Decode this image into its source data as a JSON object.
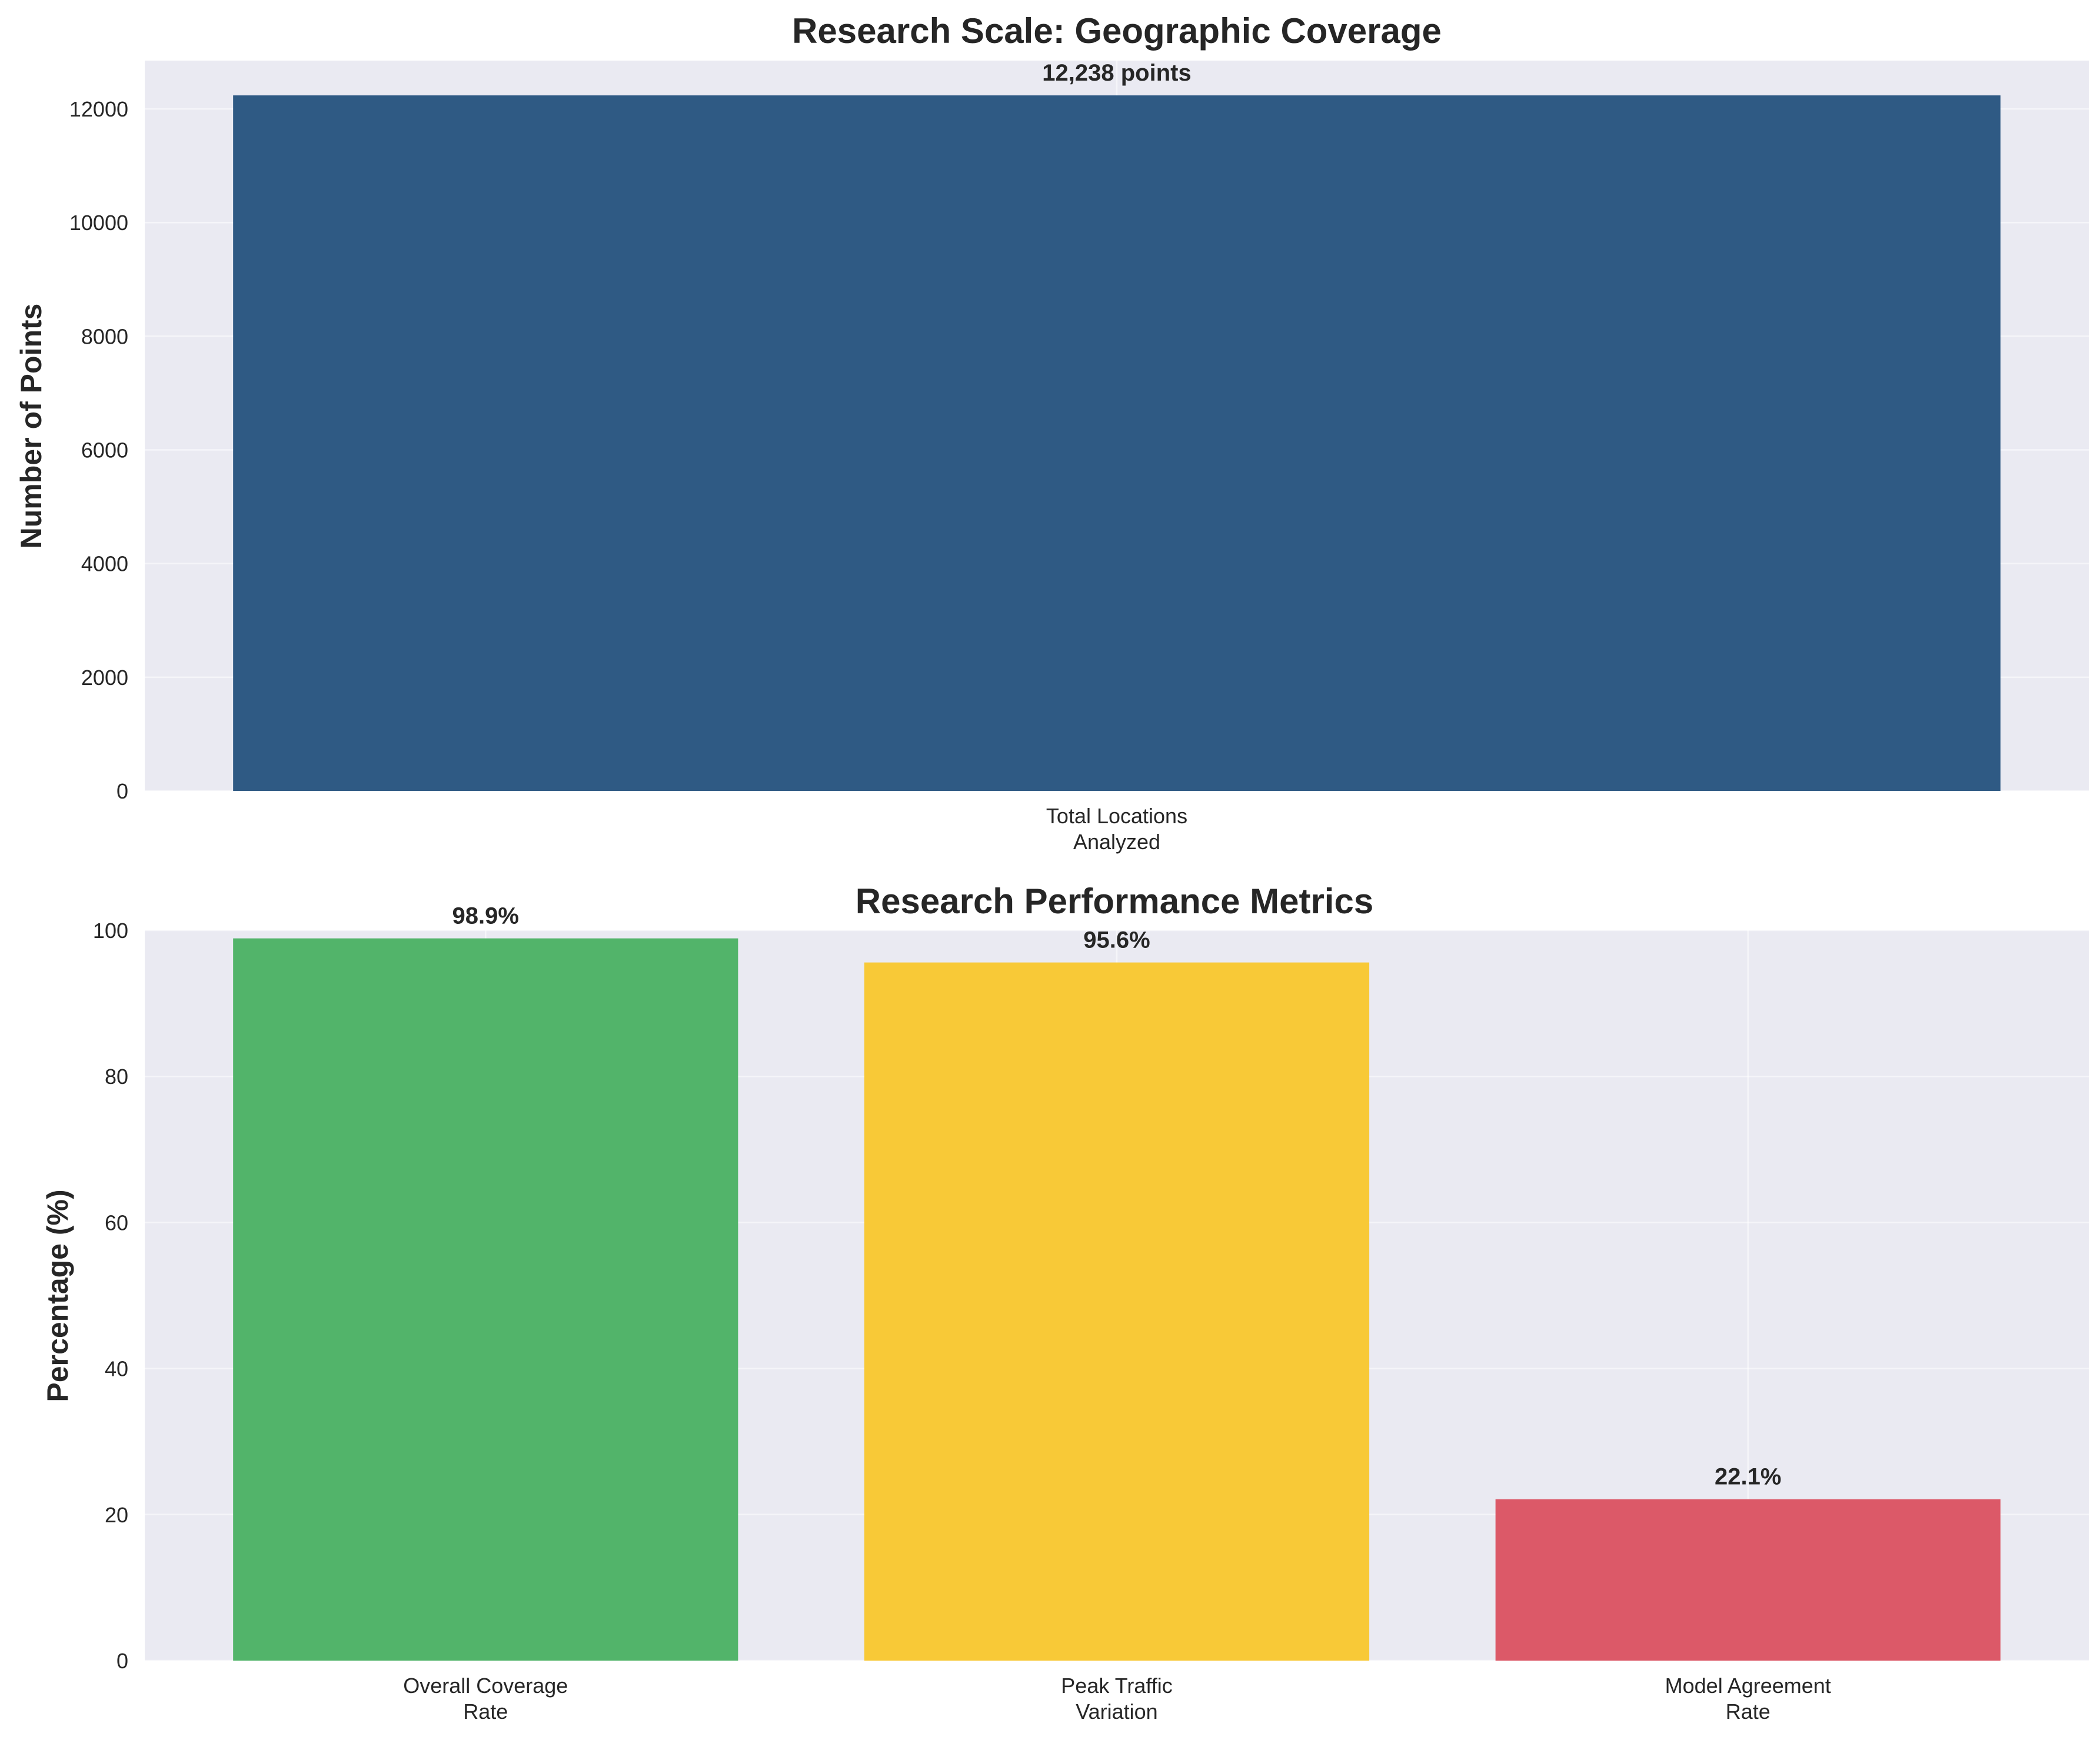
{
  "chart_data": [
    {
      "type": "bar",
      "title": "Research Scale: Geographic Coverage",
      "xlabel": "",
      "ylabel": "Number of Points",
      "categories": [
        [
          "Total Locations",
          "Analyzed"
        ]
      ],
      "values": [
        12238
      ],
      "value_labels": [
        "12,238 points"
      ],
      "colors": [
        "#2f5a84"
      ],
      "ylim": [
        0,
        12850
      ],
      "yticks": [
        0,
        2000,
        4000,
        6000,
        8000,
        10000,
        12000
      ],
      "grid": true,
      "legend": "none"
    },
    {
      "type": "bar",
      "title": "Research Performance Metrics",
      "xlabel": "",
      "ylabel": "Percentage (%)",
      "categories": [
        [
          "Overall Coverage",
          "Rate"
        ],
        [
          "Peak Traffic",
          "Variation"
        ],
        [
          "Model Agreement",
          "Rate"
        ]
      ],
      "values": [
        98.9,
        95.6,
        22.1
      ],
      "value_labels": [
        "98.9%",
        "95.6%",
        "22.1%"
      ],
      "colors": [
        "#52b46a",
        "#f8c937",
        "#dc5968"
      ],
      "ylim": [
        0,
        100
      ],
      "yticks": [
        0,
        20,
        40,
        60,
        80,
        100
      ],
      "grid": true,
      "legend": "none"
    }
  ]
}
